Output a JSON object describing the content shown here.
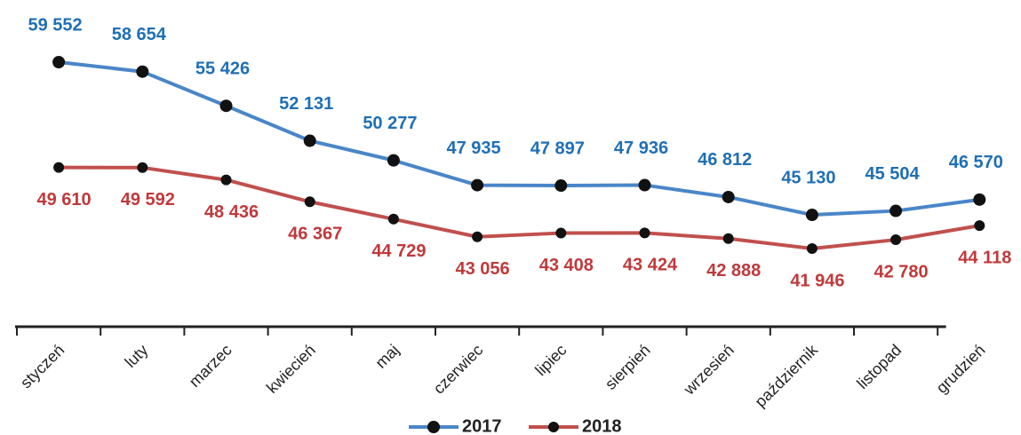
{
  "chart_data": {
    "type": "line",
    "categories": [
      "styczeń",
      "luty",
      "marzec",
      "kwiecień",
      "maj",
      "czerwiec",
      "lipiec",
      "sierpień",
      "wrzesień",
      "październik",
      "listopad",
      "grudzień"
    ],
    "series": [
      {
        "name": "2017",
        "color": "#4a86c8",
        "label_color": "#1f6fb5",
        "values": [
          59552,
          58654,
          55426,
          52131,
          50277,
          47935,
          47897,
          47936,
          46812,
          45130,
          45504,
          46570
        ],
        "value_labels": [
          "59 552",
          "58 654",
          "55 426",
          "52 131",
          "50 277",
          "47 935",
          "47 897",
          "47 936",
          "46 812",
          "45 130",
          "45 504",
          "46 570"
        ]
      },
      {
        "name": "2018",
        "color": "#c0504d",
        "label_color": "#c0393b",
        "values": [
          49610,
          49592,
          48436,
          46367,
          44729,
          43056,
          43408,
          43424,
          42888,
          41946,
          42780,
          44118
        ],
        "value_labels": [
          "49 610",
          "49 592",
          "48 436",
          "46 367",
          "44 729",
          "43 056",
          "43 408",
          "43 424",
          "42 888",
          "41 946",
          "42 780",
          "44 118"
        ]
      }
    ]
  }
}
